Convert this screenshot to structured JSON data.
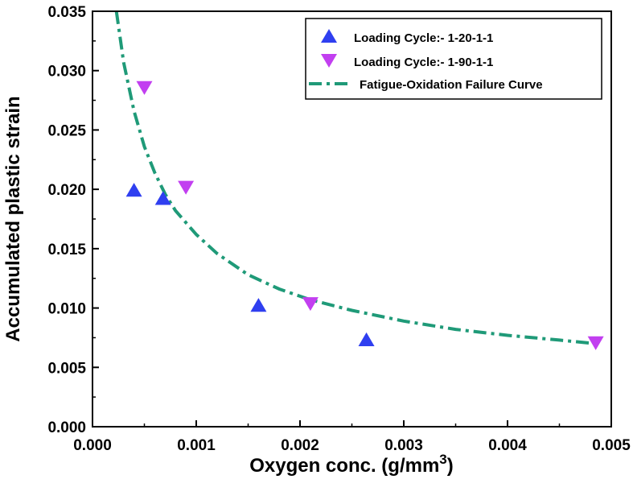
{
  "chart_data": {
    "type": "scatter",
    "xlabel": "Oxygen conc. (g/mm",
    "xlabel_superscript": "3",
    "xlabel_close": ")",
    "ylabel": "Accumulated plastic strain",
    "xlim": [
      0,
      0.005
    ],
    "ylim": [
      0,
      0.035
    ],
    "x_ticks": [
      "0.000",
      "0.001",
      "0.002",
      "0.003",
      "0.004",
      "0.005"
    ],
    "y_ticks": [
      "0.000",
      "0.005",
      "0.010",
      "0.015",
      "0.020",
      "0.025",
      "0.030",
      "0.035"
    ],
    "grid": false,
    "legend_position": "top-right",
    "series": [
      {
        "name": "Loading Cycle:- 1-20-1-1",
        "marker": "triangle-up",
        "color": "#2f3ff0",
        "points": [
          {
            "x": 0.0004,
            "y": 0.0199
          },
          {
            "x": 0.00068,
            "y": 0.0192
          },
          {
            "x": 0.0016,
            "y": 0.0102
          },
          {
            "x": 0.00264,
            "y": 0.0073
          }
        ]
      },
      {
        "name": "Loading Cycle:- 1-90-1-1",
        "marker": "triangle-down",
        "color": "#c23ff0",
        "points": [
          {
            "x": 0.0005,
            "y": 0.0286
          },
          {
            "x": 0.0009,
            "y": 0.0202
          },
          {
            "x": 0.0021,
            "y": 0.0104
          },
          {
            "x": 0.00485,
            "y": 0.0071
          }
        ]
      },
      {
        "name": "Fatigue-Oxidation Failure Curve",
        "type": "line",
        "style": "dash-dot",
        "color": "#1f9a78",
        "points": [
          {
            "x": 0.00023,
            "y": 0.035
          },
          {
            "x": 0.0003,
            "y": 0.0307
          },
          {
            "x": 0.0004,
            "y": 0.0266
          },
          {
            "x": 0.0005,
            "y": 0.0236
          },
          {
            "x": 0.0006,
            "y": 0.0214
          },
          {
            "x": 0.0007,
            "y": 0.0196
          },
          {
            "x": 0.0008,
            "y": 0.0182
          },
          {
            "x": 0.001,
            "y": 0.0162
          },
          {
            "x": 0.0012,
            "y": 0.0146
          },
          {
            "x": 0.0015,
            "y": 0.0128
          },
          {
            "x": 0.0018,
            "y": 0.0116
          },
          {
            "x": 0.0021,
            "y": 0.0107
          },
          {
            "x": 0.0025,
            "y": 0.0098
          },
          {
            "x": 0.003,
            "y": 0.0089
          },
          {
            "x": 0.0035,
            "y": 0.0082
          },
          {
            "x": 0.004,
            "y": 0.0077
          },
          {
            "x": 0.0045,
            "y": 0.0073
          },
          {
            "x": 0.00485,
            "y": 0.007
          }
        ]
      }
    ]
  }
}
